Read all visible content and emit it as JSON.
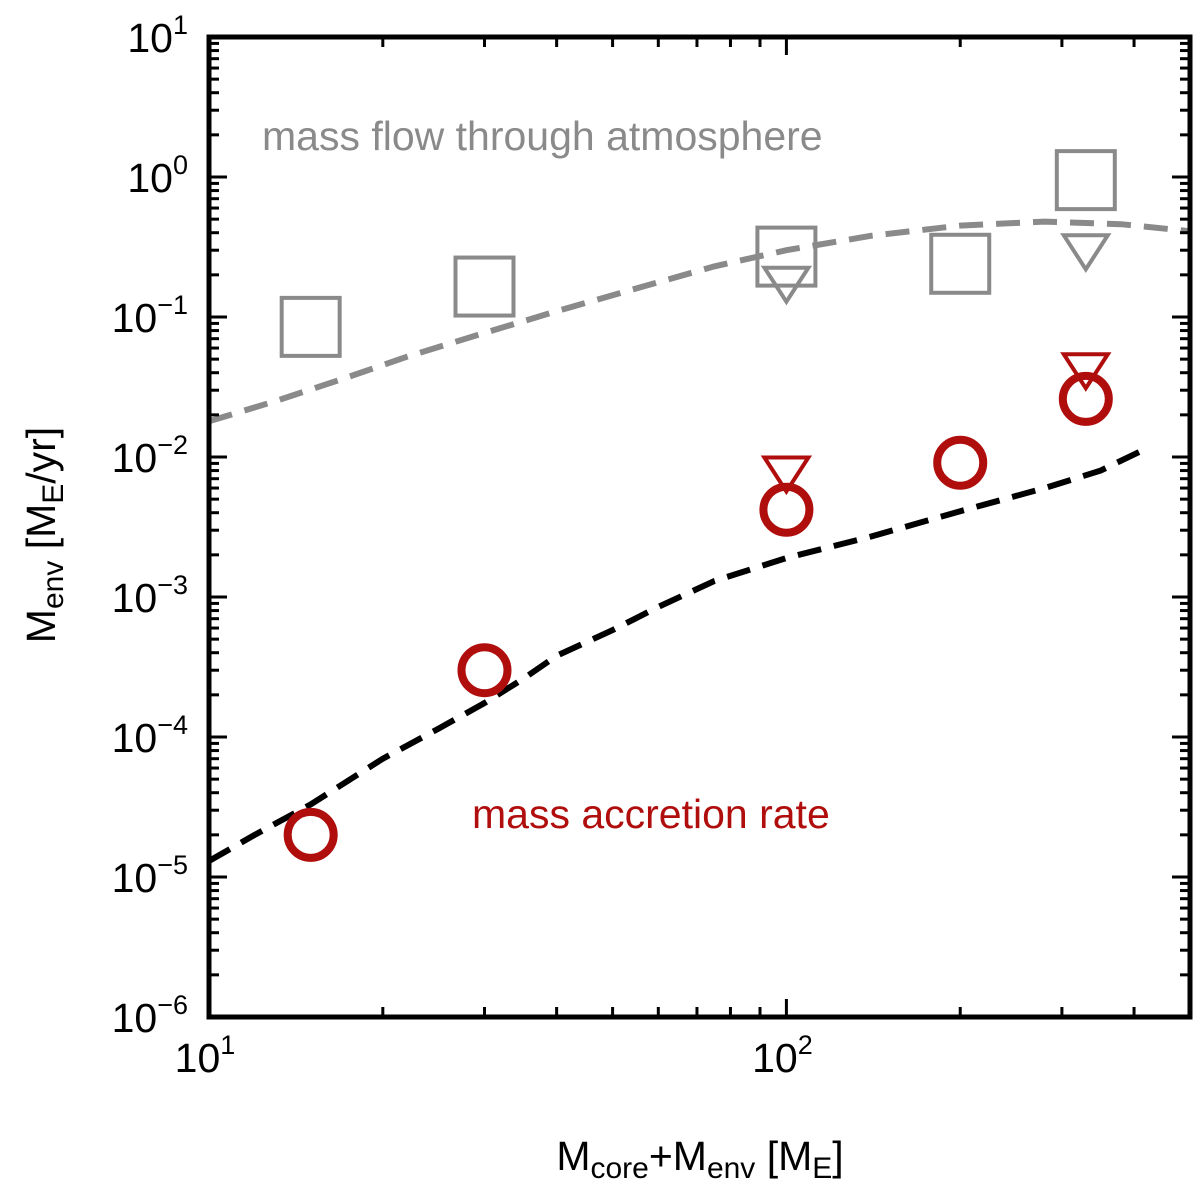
{
  "chart_data": {
    "type": "scatter",
    "xscale": "log",
    "yscale": "log",
    "xlim": [
      10,
      500
    ],
    "ylim": [
      1e-06,
      10
    ],
    "xlabel": {
      "main": "M",
      "sub1": "core",
      "plus": "+M",
      "sub2": "env",
      "bracket_open": " [M",
      "sub3": "E",
      "bracket_close": "]"
    },
    "ylabel": {
      "main": "M",
      "sub1": "env",
      "bracket_open": " [M",
      "sub2": "E",
      "bracket_close": "/yr]"
    },
    "x_ticks": [
      {
        "value": 10,
        "base": "10",
        "exp": "1"
      },
      {
        "value": 100,
        "base": "10",
        "exp": "2"
      }
    ],
    "y_ticks": [
      {
        "value": 1e-06,
        "base": "10",
        "exp": "−6"
      },
      {
        "value": 1e-05,
        "base": "10",
        "exp": "−5"
      },
      {
        "value": 0.0001,
        "base": "10",
        "exp": "−4"
      },
      {
        "value": 0.001,
        "base": "10",
        "exp": "−3"
      },
      {
        "value": 0.01,
        "base": "10",
        "exp": "−2"
      },
      {
        "value": 0.1,
        "base": "10",
        "exp": "−1"
      },
      {
        "value": 1,
        "base": "10",
        "exp": "0"
      },
      {
        "value": 10,
        "base": "10",
        "exp": "1"
      }
    ],
    "annotations": {
      "flow": "mass flow through atmosphere",
      "accretion": "mass accretion rate"
    },
    "colors": {
      "gray": "#8a8a8a",
      "red": "#b00d0d",
      "black": "#000000"
    },
    "series": [
      {
        "name": "mass flow (squares)",
        "marker": "square",
        "color": "gray",
        "points": [
          {
            "x": 15,
            "y": 0.085
          },
          {
            "x": 30,
            "y": 0.165
          },
          {
            "x": 100,
            "y": 0.27
          },
          {
            "x": 200,
            "y": 0.24
          },
          {
            "x": 330,
            "y": 0.95
          }
        ]
      },
      {
        "name": "mass flow (triangles)",
        "marker": "triangle-down",
        "color": "gray",
        "points": [
          {
            "x": 100,
            "y": 0.17
          },
          {
            "x": 330,
            "y": 0.29
          }
        ]
      },
      {
        "name": "accretion rate (circles)",
        "marker": "circle",
        "color": "red",
        "points": [
          {
            "x": 15,
            "y": 2e-05
          },
          {
            "x": 30,
            "y": 0.0003
          },
          {
            "x": 100,
            "y": 0.0042
          },
          {
            "x": 200,
            "y": 0.0091
          },
          {
            "x": 330,
            "y": 0.026
          }
        ]
      },
      {
        "name": "accretion rate (triangles)",
        "marker": "triangle-down",
        "color": "red",
        "points": [
          {
            "x": 100,
            "y": 0.0075
          },
          {
            "x": 330,
            "y": 0.041
          }
        ]
      },
      {
        "name": "mass flow model",
        "line": "dashed",
        "color": "gray",
        "points": [
          {
            "x": 10,
            "y": 0.018
          },
          {
            "x": 13,
            "y": 0.025
          },
          {
            "x": 17,
            "y": 0.036
          },
          {
            "x": 22,
            "y": 0.052
          },
          {
            "x": 30,
            "y": 0.077
          },
          {
            "x": 40,
            "y": 0.11
          },
          {
            "x": 55,
            "y": 0.16
          },
          {
            "x": 75,
            "y": 0.23
          },
          {
            "x": 100,
            "y": 0.3
          },
          {
            "x": 140,
            "y": 0.38
          },
          {
            "x": 200,
            "y": 0.45
          },
          {
            "x": 280,
            "y": 0.48
          },
          {
            "x": 380,
            "y": 0.46
          },
          {
            "x": 500,
            "y": 0.41
          }
        ]
      },
      {
        "name": "accretion rate model",
        "line": "dashed",
        "color": "black",
        "points": [
          {
            "x": 10,
            "y": 1.3e-05
          },
          {
            "x": 12,
            "y": 2e-05
          },
          {
            "x": 15,
            "y": 3.3e-05
          },
          {
            "x": 20,
            "y": 7e-05
          },
          {
            "x": 25,
            "y": 0.000115
          },
          {
            "x": 30,
            "y": 0.000175
          },
          {
            "x": 35,
            "y": 0.00026
          },
          {
            "x": 40,
            "y": 0.00038
          },
          {
            "x": 50,
            "y": 0.00058
          },
          {
            "x": 60,
            "y": 0.00085
          },
          {
            "x": 75,
            "y": 0.0013
          },
          {
            "x": 100,
            "y": 0.0019
          },
          {
            "x": 140,
            "y": 0.0027
          },
          {
            "x": 200,
            "y": 0.0041
          },
          {
            "x": 280,
            "y": 0.006
          },
          {
            "x": 350,
            "y": 0.008
          },
          {
            "x": 420,
            "y": 0.0115
          }
        ]
      }
    ]
  }
}
